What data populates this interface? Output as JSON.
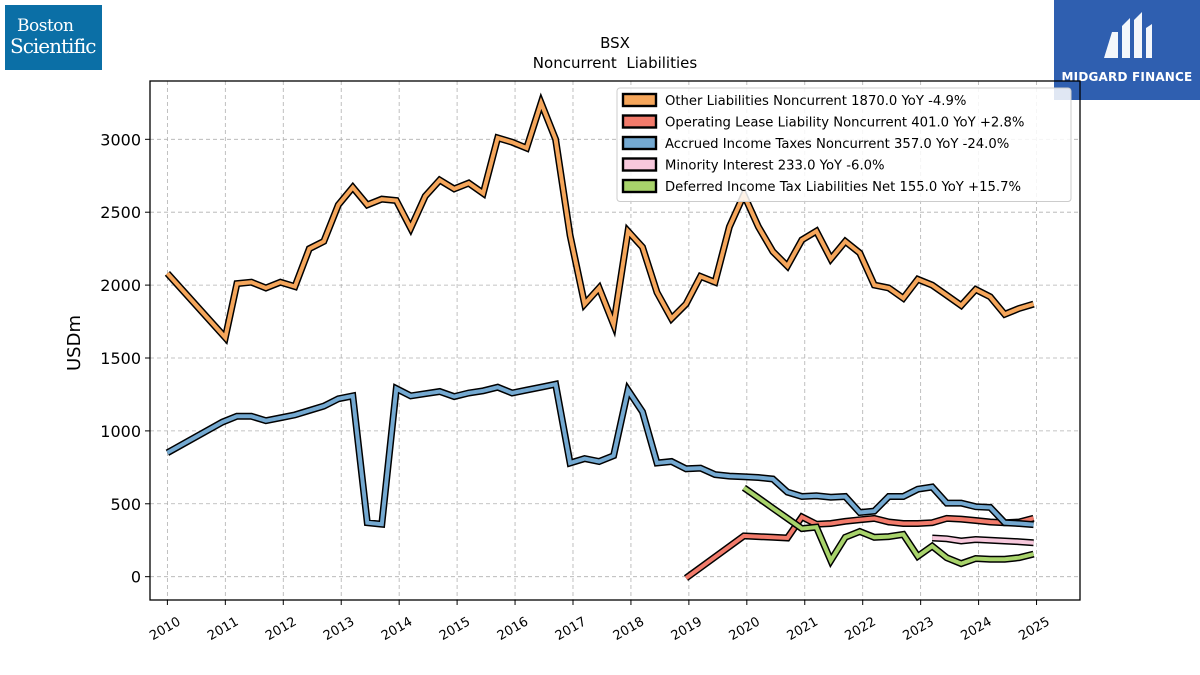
{
  "logos": {
    "left_line1": "Boston",
    "left_line2": "Scientific",
    "right_text": "MIDGARD FINANCE"
  },
  "chart_data": {
    "type": "line",
    "title": "BSX",
    "subtitle": "Noncurrent  Liabilities",
    "ylabel": "USDm",
    "xlabel": "",
    "xlim": [
      2009.7,
      2025.75
    ],
    "ylim": [
      -160,
      3400
    ],
    "yticks": [
      0,
      500,
      1000,
      1500,
      2000,
      2500,
      3000
    ],
    "xticks": [
      2010,
      2011,
      2012,
      2013,
      2014,
      2015,
      2016,
      2017,
      2018,
      2019,
      2020,
      2021,
      2022,
      2023,
      2024,
      2025
    ],
    "grid": true,
    "legend_position": "top-right",
    "series": [
      {
        "name": "Other Liabilities Noncurrent",
        "legend": "Other Liabilities Noncurrent  1870.0 YoY -4.9%",
        "color": "#f5a65b",
        "points": [
          [
            2010.0,
            2080
          ],
          [
            2011.0,
            1640
          ],
          [
            2011.2,
            2010
          ],
          [
            2011.45,
            2020
          ],
          [
            2011.7,
            1980
          ],
          [
            2011.95,
            2020
          ],
          [
            2012.2,
            1990
          ],
          [
            2012.45,
            2250
          ],
          [
            2012.7,
            2300
          ],
          [
            2012.95,
            2550
          ],
          [
            2013.2,
            2670
          ],
          [
            2013.45,
            2550
          ],
          [
            2013.7,
            2590
          ],
          [
            2013.95,
            2580
          ],
          [
            2014.2,
            2390
          ],
          [
            2014.45,
            2610
          ],
          [
            2014.7,
            2720
          ],
          [
            2014.95,
            2660
          ],
          [
            2015.2,
            2700
          ],
          [
            2015.45,
            2630
          ],
          [
            2015.7,
            3010
          ],
          [
            2015.95,
            2980
          ],
          [
            2016.2,
            2940
          ],
          [
            2016.45,
            3250
          ],
          [
            2016.7,
            3000
          ],
          [
            2016.95,
            2340
          ],
          [
            2017.2,
            1870
          ],
          [
            2017.45,
            1980
          ],
          [
            2017.7,
            1730
          ],
          [
            2017.95,
            2370
          ],
          [
            2018.2,
            2260
          ],
          [
            2018.45,
            1950
          ],
          [
            2018.7,
            1770
          ],
          [
            2018.95,
            1870
          ],
          [
            2019.2,
            2060
          ],
          [
            2019.45,
            2020
          ],
          [
            2019.7,
            2400
          ],
          [
            2019.95,
            2620
          ],
          [
            2020.2,
            2400
          ],
          [
            2020.45,
            2230
          ],
          [
            2020.7,
            2130
          ],
          [
            2020.95,
            2310
          ],
          [
            2021.2,
            2370
          ],
          [
            2021.45,
            2180
          ],
          [
            2021.7,
            2300
          ],
          [
            2021.95,
            2220
          ],
          [
            2022.2,
            2000
          ],
          [
            2022.45,
            1980
          ],
          [
            2022.7,
            1910
          ],
          [
            2022.95,
            2040
          ],
          [
            2023.2,
            2000
          ],
          [
            2023.45,
            1930
          ],
          [
            2023.7,
            1860
          ],
          [
            2023.95,
            1970
          ],
          [
            2024.2,
            1920
          ],
          [
            2024.45,
            1800
          ],
          [
            2024.7,
            1840
          ],
          [
            2024.95,
            1870
          ]
        ]
      },
      {
        "name": "Operating Lease Liability Noncurrent",
        "legend": "Operating Lease Liability Noncurrent  401.0 YoY +2.8%",
        "color": "#f27b6b",
        "points": [
          [
            2018.95,
            -10
          ],
          [
            2019.95,
            280
          ],
          [
            2020.2,
            275
          ],
          [
            2020.45,
            270
          ],
          [
            2020.7,
            265
          ],
          [
            2020.95,
            410
          ],
          [
            2021.2,
            360
          ],
          [
            2021.45,
            365
          ],
          [
            2021.7,
            380
          ],
          [
            2021.95,
            390
          ],
          [
            2022.2,
            400
          ],
          [
            2022.45,
            375
          ],
          [
            2022.7,
            365
          ],
          [
            2022.95,
            365
          ],
          [
            2023.2,
            370
          ],
          [
            2023.45,
            400
          ],
          [
            2023.7,
            395
          ],
          [
            2023.95,
            385
          ],
          [
            2024.2,
            375
          ],
          [
            2024.45,
            370
          ],
          [
            2024.7,
            375
          ],
          [
            2024.95,
            401
          ]
        ]
      },
      {
        "name": "Accrued Income Taxes Noncurrent",
        "legend": "Accrued Income Taxes Noncurrent  357.0 YoY -24.0%",
        "color": "#74a9d1",
        "points": [
          [
            2010.0,
            850
          ],
          [
            2010.95,
            1060
          ],
          [
            2011.2,
            1100
          ],
          [
            2011.45,
            1100
          ],
          [
            2011.7,
            1070
          ],
          [
            2011.95,
            1090
          ],
          [
            2012.2,
            1110
          ],
          [
            2012.45,
            1140
          ],
          [
            2012.7,
            1170
          ],
          [
            2012.95,
            1220
          ],
          [
            2013.2,
            1240
          ],
          [
            2013.45,
            370
          ],
          [
            2013.7,
            360
          ],
          [
            2013.95,
            1290
          ],
          [
            2014.2,
            1240
          ],
          [
            2014.45,
            1255
          ],
          [
            2014.7,
            1270
          ],
          [
            2014.95,
            1235
          ],
          [
            2015.2,
            1260
          ],
          [
            2015.45,
            1275
          ],
          [
            2015.7,
            1300
          ],
          [
            2015.95,
            1260
          ],
          [
            2016.2,
            1280
          ],
          [
            2016.45,
            1300
          ],
          [
            2016.7,
            1320
          ],
          [
            2016.95,
            780
          ],
          [
            2017.2,
            810
          ],
          [
            2017.45,
            790
          ],
          [
            2017.7,
            830
          ],
          [
            2017.95,
            1280
          ],
          [
            2018.2,
            1130
          ],
          [
            2018.45,
            780
          ],
          [
            2018.7,
            790
          ],
          [
            2018.95,
            740
          ],
          [
            2019.2,
            745
          ],
          [
            2019.45,
            700
          ],
          [
            2019.7,
            690
          ],
          [
            2019.95,
            685
          ],
          [
            2020.2,
            680
          ],
          [
            2020.45,
            670
          ],
          [
            2020.7,
            580
          ],
          [
            2020.95,
            550
          ],
          [
            2021.2,
            555
          ],
          [
            2021.45,
            545
          ],
          [
            2021.7,
            550
          ],
          [
            2021.95,
            440
          ],
          [
            2022.2,
            450
          ],
          [
            2022.45,
            550
          ],
          [
            2022.7,
            550
          ],
          [
            2022.95,
            600
          ],
          [
            2023.2,
            615
          ],
          [
            2023.45,
            505
          ],
          [
            2023.7,
            505
          ],
          [
            2023.95,
            480
          ],
          [
            2024.2,
            475
          ],
          [
            2024.45,
            370
          ],
          [
            2024.7,
            365
          ],
          [
            2024.95,
            357
          ]
        ]
      },
      {
        "name": "Minority Interest",
        "legend": "Minority Interest  233.0 YoY -6.0%",
        "color": "#f7c8dc",
        "points": [
          [
            2023.2,
            265
          ],
          [
            2023.45,
            260
          ],
          [
            2023.7,
            245
          ],
          [
            2023.95,
            255
          ],
          [
            2024.2,
            250
          ],
          [
            2024.45,
            245
          ],
          [
            2024.7,
            240
          ],
          [
            2024.95,
            233
          ]
        ]
      },
      {
        "name": "Deferred Income Tax Liabilities Net",
        "legend": "Deferred Income Tax Liabilities Net  155.0 YoY +15.7%",
        "color": "#a8d36b",
        "points": [
          [
            2019.95,
            610
          ],
          [
            2020.2,
            540
          ],
          [
            2020.45,
            470
          ],
          [
            2020.7,
            400
          ],
          [
            2020.95,
            330
          ],
          [
            2021.2,
            340
          ],
          [
            2021.45,
            110
          ],
          [
            2021.7,
            270
          ],
          [
            2021.95,
            310
          ],
          [
            2022.2,
            270
          ],
          [
            2022.45,
            275
          ],
          [
            2022.7,
            290
          ],
          [
            2022.95,
            140
          ],
          [
            2023.2,
            210
          ],
          [
            2023.45,
            130
          ],
          [
            2023.7,
            90
          ],
          [
            2023.95,
            125
          ],
          [
            2024.2,
            120
          ],
          [
            2024.45,
            120
          ],
          [
            2024.7,
            130
          ],
          [
            2024.95,
            155
          ]
        ]
      }
    ]
  }
}
